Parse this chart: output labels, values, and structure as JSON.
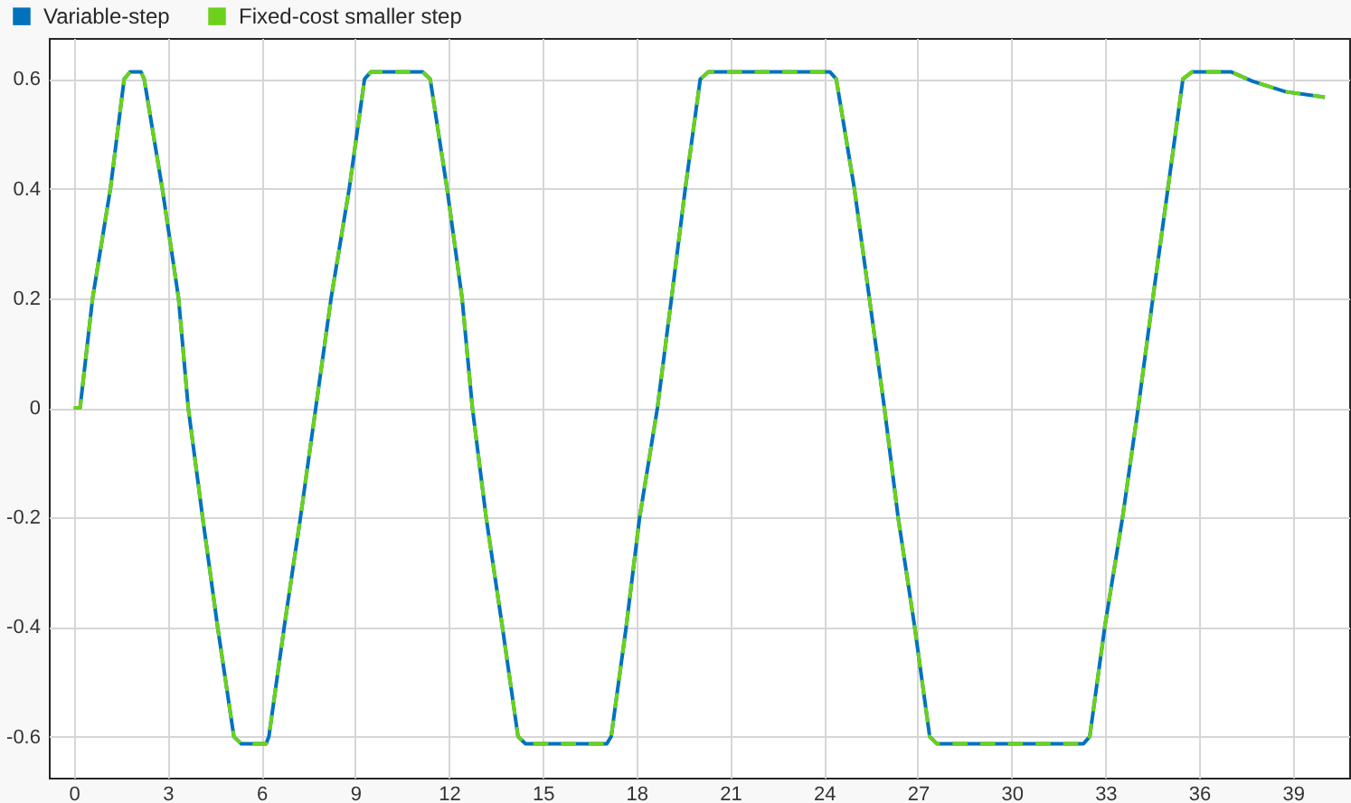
{
  "chart_data": {
    "type": "line",
    "x": [
      0,
      0.2,
      0.6,
      1.17,
      1.61,
      1.8,
      2.15,
      2.25,
      2.83,
      3.35,
      3.66,
      4.12,
      4.6,
      5.12,
      5.35,
      6.15,
      6.24,
      6.73,
      7.25,
      7.74,
      8.23,
      8.81,
      9.3,
      9.5,
      11.16,
      11.4,
      11.94,
      12.42,
      12.75,
      13.19,
      13.71,
      14.21,
      14.45,
      17.05,
      17.19,
      17.67,
      18.1,
      18.67,
      19.12,
      19.56,
      20.04,
      20.3,
      24.19,
      24.39,
      24.97,
      25.45,
      25.93,
      26.37,
      26.9,
      27.38,
      27.61,
      32.3,
      32.5,
      32.98,
      33.55,
      34.05,
      34.52,
      35.0,
      35.48,
      35.77,
      37.03,
      37.71,
      38.76,
      40.02
    ],
    "series": [
      {
        "name": "Variable-step",
        "color": "#0072bd",
        "line_style": "solid",
        "values": [
          0,
          0,
          0.2,
          0.4,
          0.6,
          0.613,
          0.613,
          0.6,
          0.4,
          0.2,
          0,
          -0.2,
          -0.4,
          -0.6,
          -0.613,
          -0.613,
          -0.6,
          -0.4,
          -0.2,
          0,
          0.2,
          0.4,
          0.6,
          0.613,
          0.613,
          0.6,
          0.4,
          0.2,
          0,
          -0.2,
          -0.4,
          -0.6,
          -0.613,
          -0.613,
          -0.6,
          -0.4,
          -0.2,
          0,
          0.2,
          0.4,
          0.6,
          0.613,
          0.613,
          0.6,
          0.4,
          0.2,
          0,
          -0.2,
          -0.4,
          -0.6,
          -0.613,
          -0.613,
          -0.6,
          -0.4,
          -0.2,
          0,
          0.2,
          0.4,
          0.6,
          0.613,
          0.613,
          0.596,
          0.577,
          0.567
        ]
      },
      {
        "name": "Fixed-cost smaller step",
        "color": "#6bd11a",
        "line_style": "dashed",
        "values": [
          0,
          0,
          0.2,
          0.4,
          0.6,
          0.613,
          0.613,
          0.6,
          0.4,
          0.2,
          0,
          -0.2,
          -0.4,
          -0.6,
          -0.613,
          -0.613,
          -0.6,
          -0.4,
          -0.2,
          0,
          0.2,
          0.4,
          0.6,
          0.613,
          0.613,
          0.6,
          0.4,
          0.2,
          0,
          -0.2,
          -0.4,
          -0.6,
          -0.613,
          -0.613,
          -0.6,
          -0.4,
          -0.2,
          0,
          0.2,
          0.4,
          0.6,
          0.613,
          0.613,
          0.6,
          0.4,
          0.2,
          0,
          -0.2,
          -0.4,
          -0.6,
          -0.613,
          -0.613,
          -0.6,
          -0.4,
          -0.2,
          0,
          0.2,
          0.4,
          0.6,
          0.613,
          0.613,
          0.596,
          0.577,
          0.567
        ]
      }
    ],
    "xlim": [
      -0.8,
      40.8
    ],
    "xticks": [
      0,
      3,
      6,
      9,
      12,
      15,
      18,
      21,
      24,
      27,
      30,
      33,
      36,
      39
    ],
    "ylim": [
      -0.675,
      0.675
    ],
    "yticks": [
      -0.6,
      -0.4,
      -0.2,
      0,
      0.2,
      0.4,
      0.6
    ],
    "grid": true,
    "legend": "top left",
    "marker": "none"
  }
}
